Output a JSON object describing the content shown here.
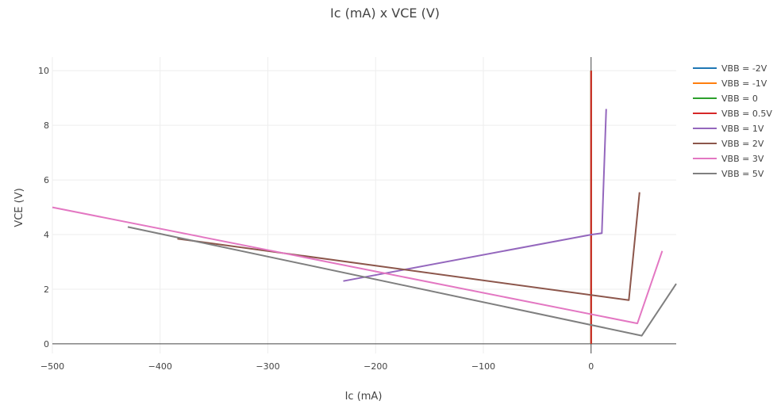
{
  "chart_data": {
    "type": "line",
    "title": "Ic (mA) x VCE (V)",
    "xlabel": "Ic (mA)",
    "ylabel": "VCE (V)",
    "xlim": [
      -500,
      79
    ],
    "ylim": [
      -0.35,
      10.5
    ],
    "xticks": [
      -500,
      -400,
      -300,
      -200,
      -100,
      0
    ],
    "xtick_labels": [
      "−500",
      "−400",
      "−300",
      "−200",
      "−100",
      "0"
    ],
    "yticks": [
      0,
      2,
      4,
      6,
      8,
      10
    ],
    "ytick_labels": [
      "0",
      "2",
      "4",
      "6",
      "8",
      "10"
    ],
    "grid": true,
    "legend_position": "right",
    "series": [
      {
        "name": "VBB = -2V",
        "color": "#1f77b4",
        "x": [
          0,
          0
        ],
        "y": [
          0,
          10
        ]
      },
      {
        "name": "VBB = -1V",
        "color": "#ff7f0e",
        "x": [
          0,
          0
        ],
        "y": [
          0,
          10
        ]
      },
      {
        "name": "VBB = 0",
        "color": "#2ca02c",
        "x": [
          0,
          0
        ],
        "y": [
          0,
          10
        ]
      },
      {
        "name": "VBB = 0.5V",
        "color": "#d62728",
        "x": [
          0,
          0
        ],
        "y": [
          0,
          10
        ]
      },
      {
        "name": "VBB = 1V",
        "color": "#9467bd",
        "x": [
          -230,
          0,
          10,
          14
        ],
        "y": [
          2.3,
          4.0,
          4.05,
          8.6
        ]
      },
      {
        "name": "VBB = 2V",
        "color": "#8c564b",
        "x": [
          -384,
          35,
          45
        ],
        "y": [
          3.85,
          1.6,
          5.55
        ]
      },
      {
        "name": "VBB = 3V",
        "color": "#e377c2",
        "x": [
          -500,
          43,
          66
        ],
        "y": [
          5.0,
          0.75,
          3.4
        ]
      },
      {
        "name": "VBB = 5V",
        "color": "#7f7f7f",
        "x": [
          -430,
          47,
          79
        ],
        "y": [
          4.28,
          0.3,
          2.2
        ]
      }
    ]
  }
}
